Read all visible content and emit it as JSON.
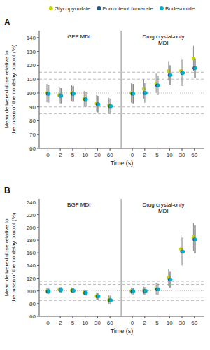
{
  "chart_data": [
    {
      "type": "scatter",
      "title": "A",
      "annotations": [
        "GFF MDI",
        "Drug crystal-only\nMDI"
      ],
      "xlabel": "Time (s)",
      "ylabel": "Mean delivered dose relative to\nthe mean of the no delay control (%)",
      "categories": [
        "0",
        "2",
        "5",
        "10",
        "30",
        "60",
        "0",
        "2",
        "5",
        "10",
        "30",
        "60"
      ],
      "ylim": [
        60,
        145
      ],
      "yticks": [
        60,
        70,
        80,
        90,
        100,
        110,
        120,
        130,
        140
      ],
      "grid": false,
      "legend": "top",
      "marker": "circle",
      "reference_lines": [
        {
          "value": 85,
          "line_style": "dashed"
        },
        {
          "value": 90,
          "line_style": "dashed"
        },
        {
          "value": 100,
          "line_style": "dotted"
        },
        {
          "value": 110,
          "line_style": "dashed"
        },
        {
          "value": 115,
          "line_style": "dashed"
        }
      ],
      "series": [
        {
          "name": "Glycopyrrolate",
          "color": "#c8d400",
          "values": [
            100.0,
            98.5,
            100.0,
            96.0,
            92.5,
            91.0,
            100.0,
            103.0,
            107.0,
            116.0,
            116.0,
            125.0
          ],
          "errors": [
            6.5,
            5.5,
            5.5,
            5.5,
            6.0,
            5.5,
            7.0,
            7.0,
            7.0,
            7.0,
            9.5,
            9.0
          ]
        },
        {
          "name": "Formoterol fumarate",
          "color": "#1a5c8a",
          "values": [
            99.5,
            98.0,
            99.5,
            95.5,
            92.0,
            90.5,
            99.5,
            100.0,
            105.5,
            113.0,
            114.5,
            118.0
          ],
          "errors": [
            6.5,
            5.5,
            5.5,
            5.5,
            6.0,
            5.5,
            7.0,
            7.0,
            7.0,
            7.0,
            9.5,
            7.0
          ]
        },
        {
          "name": "Budesonide",
          "color": "#00b0c8",
          "values": [
            99.5,
            98.0,
            99.5,
            95.5,
            92.0,
            90.5,
            99.5,
            100.0,
            105.5,
            113.0,
            114.5,
            118.0
          ],
          "errors": [
            6.5,
            5.5,
            5.5,
            5.5,
            6.0,
            5.5,
            7.0,
            7.0,
            7.0,
            7.0,
            9.5,
            7.0
          ]
        }
      ]
    },
    {
      "type": "scatter",
      "title": "B",
      "annotations": [
        "BGF MDI",
        "Drug crystal-only\nMDI"
      ],
      "xlabel": "Time (s)",
      "ylabel": "Mean delivered dose relative to\nthe mean of the no delay control (%)",
      "categories": [
        "0",
        "2",
        "5",
        "10",
        "30",
        "60",
        "0",
        "2",
        "5",
        "10",
        "30",
        "60"
      ],
      "ylim": [
        60,
        245
      ],
      "yticks": [
        60,
        80,
        100,
        120,
        140,
        160,
        180,
        200,
        220,
        240
      ],
      "grid": false,
      "marker": "circle",
      "reference_lines": [
        {
          "value": 85,
          "line_style": "dashed"
        },
        {
          "value": 90,
          "line_style": "dashed"
        },
        {
          "value": 100,
          "line_style": "dotted"
        },
        {
          "value": 110,
          "line_style": "dashed"
        },
        {
          "value": 115,
          "line_style": "dashed"
        }
      ],
      "series": [
        {
          "color": "#c8d400",
          "values": [
            100.0,
            102.0,
            101.0,
            97.5,
            92.0,
            86.0,
            100.0,
            100.5,
            103.0,
            121.0,
            166.0,
            185.0
          ],
          "errors": [
            4.5,
            4.5,
            4.0,
            4.5,
            5.5,
            7.0,
            5.0,
            6.0,
            9.0,
            13.0,
            23.0,
            22.0
          ]
        },
        {
          "color": "#1a5c8a",
          "values": [
            99.5,
            101.5,
            100.5,
            97.0,
            91.5,
            85.5,
            99.5,
            100.0,
            102.5,
            118.0,
            162.0,
            181.0
          ],
          "errors": [
            4.5,
            4.5,
            4.0,
            4.5,
            5.5,
            7.0,
            5.0,
            6.0,
            9.0,
            13.0,
            22.0,
            22.0
          ]
        },
        {
          "color": "#00b0c8",
          "values": [
            99.5,
            101.5,
            100.5,
            97.0,
            91.5,
            85.5,
            99.5,
            100.0,
            102.5,
            118.0,
            162.0,
            181.0
          ],
          "errors": [
            4.5,
            4.5,
            4.0,
            4.5,
            5.5,
            7.0,
            5.0,
            6.0,
            9.0,
            13.0,
            22.0,
            22.0
          ]
        }
      ]
    }
  ]
}
